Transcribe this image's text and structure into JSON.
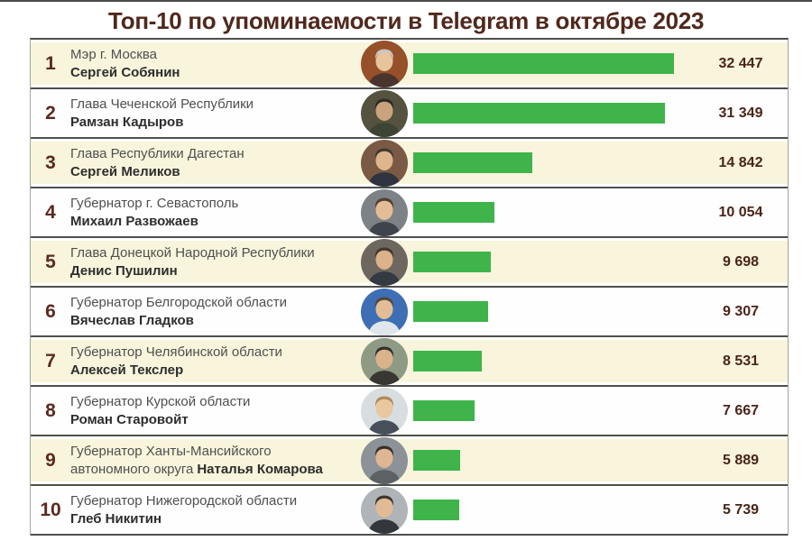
{
  "title": "Топ-10 по упоминаемости в Telegram в октябре 2023",
  "colors": {
    "title": "#50281c",
    "bar": "#3eb44a",
    "row_alt": "#f8f5dc",
    "row_base": "#fefefe",
    "rank": "#5b2a1e",
    "value": "#4a2418",
    "position_text": "#4f4f4f",
    "name_text": "#2d2d2d",
    "divider": "#4f4f4c"
  },
  "rows": [
    {
      "rank": "1",
      "position": "Мэр г. Москва",
      "position2": "",
      "name": "Сергей Собянин",
      "value": "32 447",
      "avatar": {
        "bg": "#96502a",
        "suit": "#4a342e",
        "skin": "#e8c49c",
        "hair": "#c6c6c2"
      }
    },
    {
      "rank": "2",
      "position": "Глава Чеченской Республики",
      "position2": "",
      "name": "Рамзан Кадыров",
      "value": "31 349",
      "avatar": {
        "bg": "#55523f",
        "suit": "#3d4434",
        "skin": "#c9a37b",
        "hair": "#2e2a24"
      }
    },
    {
      "rank": "3",
      "position": "Глава Республики Дагестан",
      "position2": "",
      "name": "Сергей Меликов",
      "value": "14 842",
      "avatar": {
        "bg": "#7a5a44",
        "suit": "#2f3340",
        "skin": "#dfb58c",
        "hair": "#3f3a38"
      }
    },
    {
      "rank": "4",
      "position": "Губернатор г. Севастополь",
      "position2": "",
      "name": "Михаил Развожаев",
      "value": "10 054",
      "avatar": {
        "bg": "#7d8287",
        "suit": "#3f444c",
        "skin": "#e4bd97",
        "hair": "#4e4034"
      }
    },
    {
      "rank": "5",
      "position": "Глава Донецкой Народной Республики",
      "position2": "",
      "name": "Денис Пушилин",
      "value": "9 698",
      "avatar": {
        "bg": "#6e6760",
        "suit": "#343a42",
        "skin": "#dcb28a",
        "hair": "#42382e"
      }
    },
    {
      "rank": "6",
      "position": "Губернатор Белгородской области",
      "position2": "",
      "name": "Вячеслав Гладков",
      "value": "9 307",
      "avatar": {
        "bg": "#3e6fb4",
        "suit": "#dfe7ec",
        "skin": "#e4bd97",
        "hair": "#54483a"
      }
    },
    {
      "rank": "7",
      "position": "Губернатор Челябинской области",
      "position2": "",
      "name": "Алексей Текслер",
      "value": "8 531",
      "avatar": {
        "bg": "#8e9a84",
        "suit": "#3a3732",
        "skin": "#d9b38c",
        "hair": "#33302c"
      }
    },
    {
      "rank": "8",
      "position": "Губернатор Курской области",
      "position2": "",
      "name": "Роман Старовойт",
      "value": "7 667",
      "avatar": {
        "bg": "#d8dde0",
        "suit": "#47505a",
        "skin": "#e8c8a0",
        "hair": "#b08a58"
      }
    },
    {
      "rank": "9",
      "position": "Губернатор Ханты-Мансийского",
      "position2": "автономного округа",
      "name": "Наталья Комарова",
      "value": "5 889",
      "avatar": {
        "bg": "#8d9298",
        "suit": "#5c6165",
        "skin": "#dfb694",
        "hair": "#36302a"
      }
    },
    {
      "rank": "10",
      "position": "Губернатор Нижегородской области",
      "position2": "",
      "name": "Глеб Никитин",
      "value": "5 739",
      "avatar": {
        "bg": "#aeb4b8",
        "suit": "#33373c",
        "skin": "#e2bb94",
        "hair": "#3e362e"
      }
    }
  ],
  "chart_data": {
    "type": "bar",
    "orientation": "horizontal",
    "title": "Топ-10 по упоминаемости в Telegram в октябре 2023",
    "categories": [
      "Сергей Собянин",
      "Рамзан Кадыров",
      "Сергей Меликов",
      "Михаил Развожаев",
      "Денис Пушилин",
      "Вячеслав Гладков",
      "Алексей Текслер",
      "Роман Старовойт",
      "Наталья Комарова",
      "Глеб Никитин"
    ],
    "category_positions": [
      "Мэр г. Москва",
      "Глава Чеченской Республики",
      "Глава Республики Дагестан",
      "Губернатор г. Севастополь",
      "Глава Донецкой Народной Республики",
      "Губернатор Белгородской области",
      "Губернатор Челябинской области",
      "Губернатор Курской области",
      "Губернатор Ханты-Мансийского автономного округа",
      "Губернатор Нижегородской области"
    ],
    "values": [
      32447,
      31349,
      14842,
      10054,
      9698,
      9307,
      8531,
      7667,
      5889,
      5739
    ],
    "value_labels": [
      "32 447",
      "31 349",
      "14 842",
      "10 054",
      "9 698",
      "9 307",
      "8 531",
      "7 667",
      "5 889",
      "5 739"
    ],
    "ranks": [
      1,
      2,
      3,
      4,
      5,
      6,
      7,
      8,
      9,
      10
    ],
    "xlim": [
      0,
      32447
    ],
    "bar_color": "#3eb44a",
    "grid": false,
    "legend": false
  }
}
